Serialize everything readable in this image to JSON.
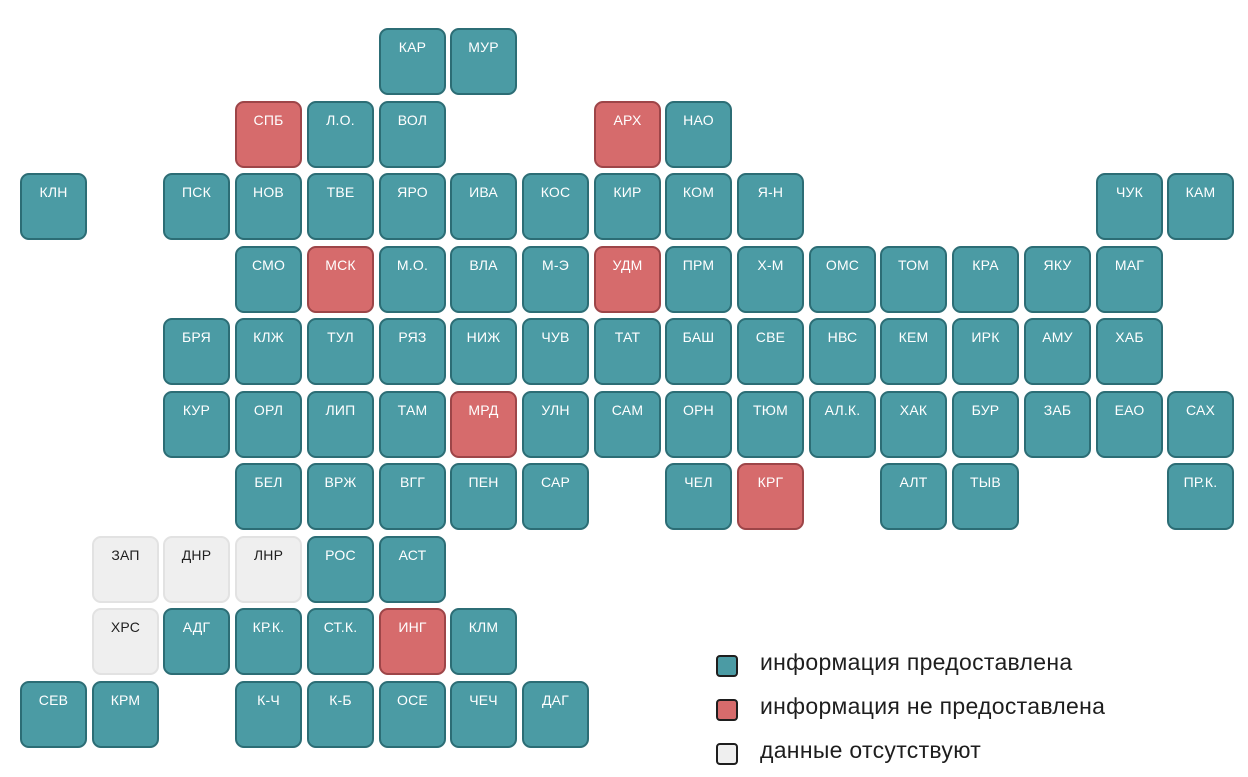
{
  "colors": {
    "provided": "#4b9ba4",
    "not_provided": "#d66b6c",
    "missing": "#efefef"
  },
  "legend": [
    {
      "status": "provided",
      "label": "информация предоставлена"
    },
    {
      "status": "not_provided",
      "label": "информация не предоставлена"
    },
    {
      "status": "missing",
      "label": "данные отсутствуют"
    }
  ],
  "rows": [
    [
      {
        "label": "КАР",
        "col": 5,
        "status": "provided"
      },
      {
        "label": "МУР",
        "col": 6,
        "status": "provided"
      }
    ],
    [
      {
        "label": "СПБ",
        "col": 3,
        "status": "not_provided"
      },
      {
        "label": "Л.О.",
        "col": 4,
        "status": "provided"
      },
      {
        "label": "ВОЛ",
        "col": 5,
        "status": "provided"
      },
      {
        "label": "АРХ",
        "col": 8,
        "status": "not_provided"
      },
      {
        "label": "НАО",
        "col": 9,
        "status": "provided"
      }
    ],
    [
      {
        "label": "КЛН",
        "col": 0,
        "status": "provided"
      },
      {
        "label": "ПСК",
        "col": 2,
        "status": "provided"
      },
      {
        "label": "НОВ",
        "col": 3,
        "status": "provided"
      },
      {
        "label": "ТВЕ",
        "col": 4,
        "status": "provided"
      },
      {
        "label": "ЯРО",
        "col": 5,
        "status": "provided"
      },
      {
        "label": "ИВА",
        "col": 6,
        "status": "provided"
      },
      {
        "label": "КОС",
        "col": 7,
        "status": "provided"
      },
      {
        "label": "КИР",
        "col": 8,
        "status": "provided"
      },
      {
        "label": "КОМ",
        "col": 9,
        "status": "provided"
      },
      {
        "label": "Я-Н",
        "col": 10,
        "status": "provided"
      },
      {
        "label": "ЧУК",
        "col": 15,
        "status": "provided"
      },
      {
        "label": "КАМ",
        "col": 16,
        "status": "provided"
      }
    ],
    [
      {
        "label": "СМО",
        "col": 3,
        "status": "provided"
      },
      {
        "label": "МСК",
        "col": 4,
        "status": "not_provided"
      },
      {
        "label": "М.О.",
        "col": 5,
        "status": "provided"
      },
      {
        "label": "ВЛА",
        "col": 6,
        "status": "provided"
      },
      {
        "label": "М-Э",
        "col": 7,
        "status": "provided"
      },
      {
        "label": "УДМ",
        "col": 8,
        "status": "not_provided"
      },
      {
        "label": "ПРМ",
        "col": 9,
        "status": "provided"
      },
      {
        "label": "Х-М",
        "col": 10,
        "status": "provided"
      },
      {
        "label": "ОМС",
        "col": 11,
        "status": "provided"
      },
      {
        "label": "ТОМ",
        "col": 12,
        "status": "provided"
      },
      {
        "label": "КРА",
        "col": 13,
        "status": "provided"
      },
      {
        "label": "ЯКУ",
        "col": 14,
        "status": "provided"
      },
      {
        "label": "МАГ",
        "col": 15,
        "status": "provided"
      }
    ],
    [
      {
        "label": "БРЯ",
        "col": 2,
        "status": "provided"
      },
      {
        "label": "КЛЖ",
        "col": 3,
        "status": "provided"
      },
      {
        "label": "ТУЛ",
        "col": 4,
        "status": "provided"
      },
      {
        "label": "РЯЗ",
        "col": 5,
        "status": "provided"
      },
      {
        "label": "НИЖ",
        "col": 6,
        "status": "provided"
      },
      {
        "label": "ЧУВ",
        "col": 7,
        "status": "provided"
      },
      {
        "label": "ТАТ",
        "col": 8,
        "status": "provided"
      },
      {
        "label": "БАШ",
        "col": 9,
        "status": "provided"
      },
      {
        "label": "СВЕ",
        "col": 10,
        "status": "provided"
      },
      {
        "label": "НВС",
        "col": 11,
        "status": "provided"
      },
      {
        "label": "КЕМ",
        "col": 12,
        "status": "provided"
      },
      {
        "label": "ИРК",
        "col": 13,
        "status": "provided"
      },
      {
        "label": "АМУ",
        "col": 14,
        "status": "provided"
      },
      {
        "label": "ХАБ",
        "col": 15,
        "status": "provided"
      }
    ],
    [
      {
        "label": "КУР",
        "col": 2,
        "status": "provided"
      },
      {
        "label": "ОРЛ",
        "col": 3,
        "status": "provided"
      },
      {
        "label": "ЛИП",
        "col": 4,
        "status": "provided"
      },
      {
        "label": "ТАМ",
        "col": 5,
        "status": "provided"
      },
      {
        "label": "МРД",
        "col": 6,
        "status": "not_provided"
      },
      {
        "label": "УЛН",
        "col": 7,
        "status": "provided"
      },
      {
        "label": "САМ",
        "col": 8,
        "status": "provided"
      },
      {
        "label": "ОРН",
        "col": 9,
        "status": "provided"
      },
      {
        "label": "ТЮМ",
        "col": 10,
        "status": "provided"
      },
      {
        "label": "АЛ.К.",
        "col": 11,
        "status": "provided"
      },
      {
        "label": "ХАК",
        "col": 12,
        "status": "provided"
      },
      {
        "label": "БУР",
        "col": 13,
        "status": "provided"
      },
      {
        "label": "ЗАБ",
        "col": 14,
        "status": "provided"
      },
      {
        "label": "ЕАО",
        "col": 15,
        "status": "provided"
      },
      {
        "label": "САХ",
        "col": 16,
        "status": "provided"
      }
    ],
    [
      {
        "label": "БЕЛ",
        "col": 3,
        "status": "provided"
      },
      {
        "label": "ВРЖ",
        "col": 4,
        "status": "provided"
      },
      {
        "label": "ВГГ",
        "col": 5,
        "status": "provided"
      },
      {
        "label": "ПЕН",
        "col": 6,
        "status": "provided"
      },
      {
        "label": "САР",
        "col": 7,
        "status": "provided"
      },
      {
        "label": "ЧЕЛ",
        "col": 9,
        "status": "provided"
      },
      {
        "label": "КРГ",
        "col": 10,
        "status": "not_provided"
      },
      {
        "label": "АЛТ",
        "col": 12,
        "status": "provided"
      },
      {
        "label": "ТЫВ",
        "col": 13,
        "status": "provided"
      },
      {
        "label": "ПР.К.",
        "col": 16,
        "status": "provided"
      }
    ],
    [
      {
        "label": "ЗАП",
        "col": 1,
        "status": "missing"
      },
      {
        "label": "ДНР",
        "col": 2,
        "status": "missing"
      },
      {
        "label": "ЛНР",
        "col": 3,
        "status": "missing"
      },
      {
        "label": "РОС",
        "col": 4,
        "status": "provided"
      },
      {
        "label": "АСТ",
        "col": 5,
        "status": "provided"
      }
    ],
    [
      {
        "label": "ХРС",
        "col": 1,
        "status": "missing"
      },
      {
        "label": "АДГ",
        "col": 2,
        "status": "provided"
      },
      {
        "label": "КР.К.",
        "col": 3,
        "status": "provided"
      },
      {
        "label": "СТ.К.",
        "col": 4,
        "status": "provided"
      },
      {
        "label": "ИНГ",
        "col": 5,
        "status": "not_provided"
      },
      {
        "label": "КЛМ",
        "col": 6,
        "status": "provided"
      }
    ],
    [
      {
        "label": "СЕВ",
        "col": 0,
        "status": "provided"
      },
      {
        "label": "КРМ",
        "col": 1,
        "status": "provided"
      },
      {
        "label": "К-Ч",
        "col": 3,
        "status": "provided"
      },
      {
        "label": "К-Б",
        "col": 4,
        "status": "provided"
      },
      {
        "label": "ОСЕ",
        "col": 5,
        "status": "provided"
      },
      {
        "label": "ЧЕЧ",
        "col": 6,
        "status": "provided"
      },
      {
        "label": "ДАГ",
        "col": 7,
        "status": "provided"
      }
    ]
  ]
}
